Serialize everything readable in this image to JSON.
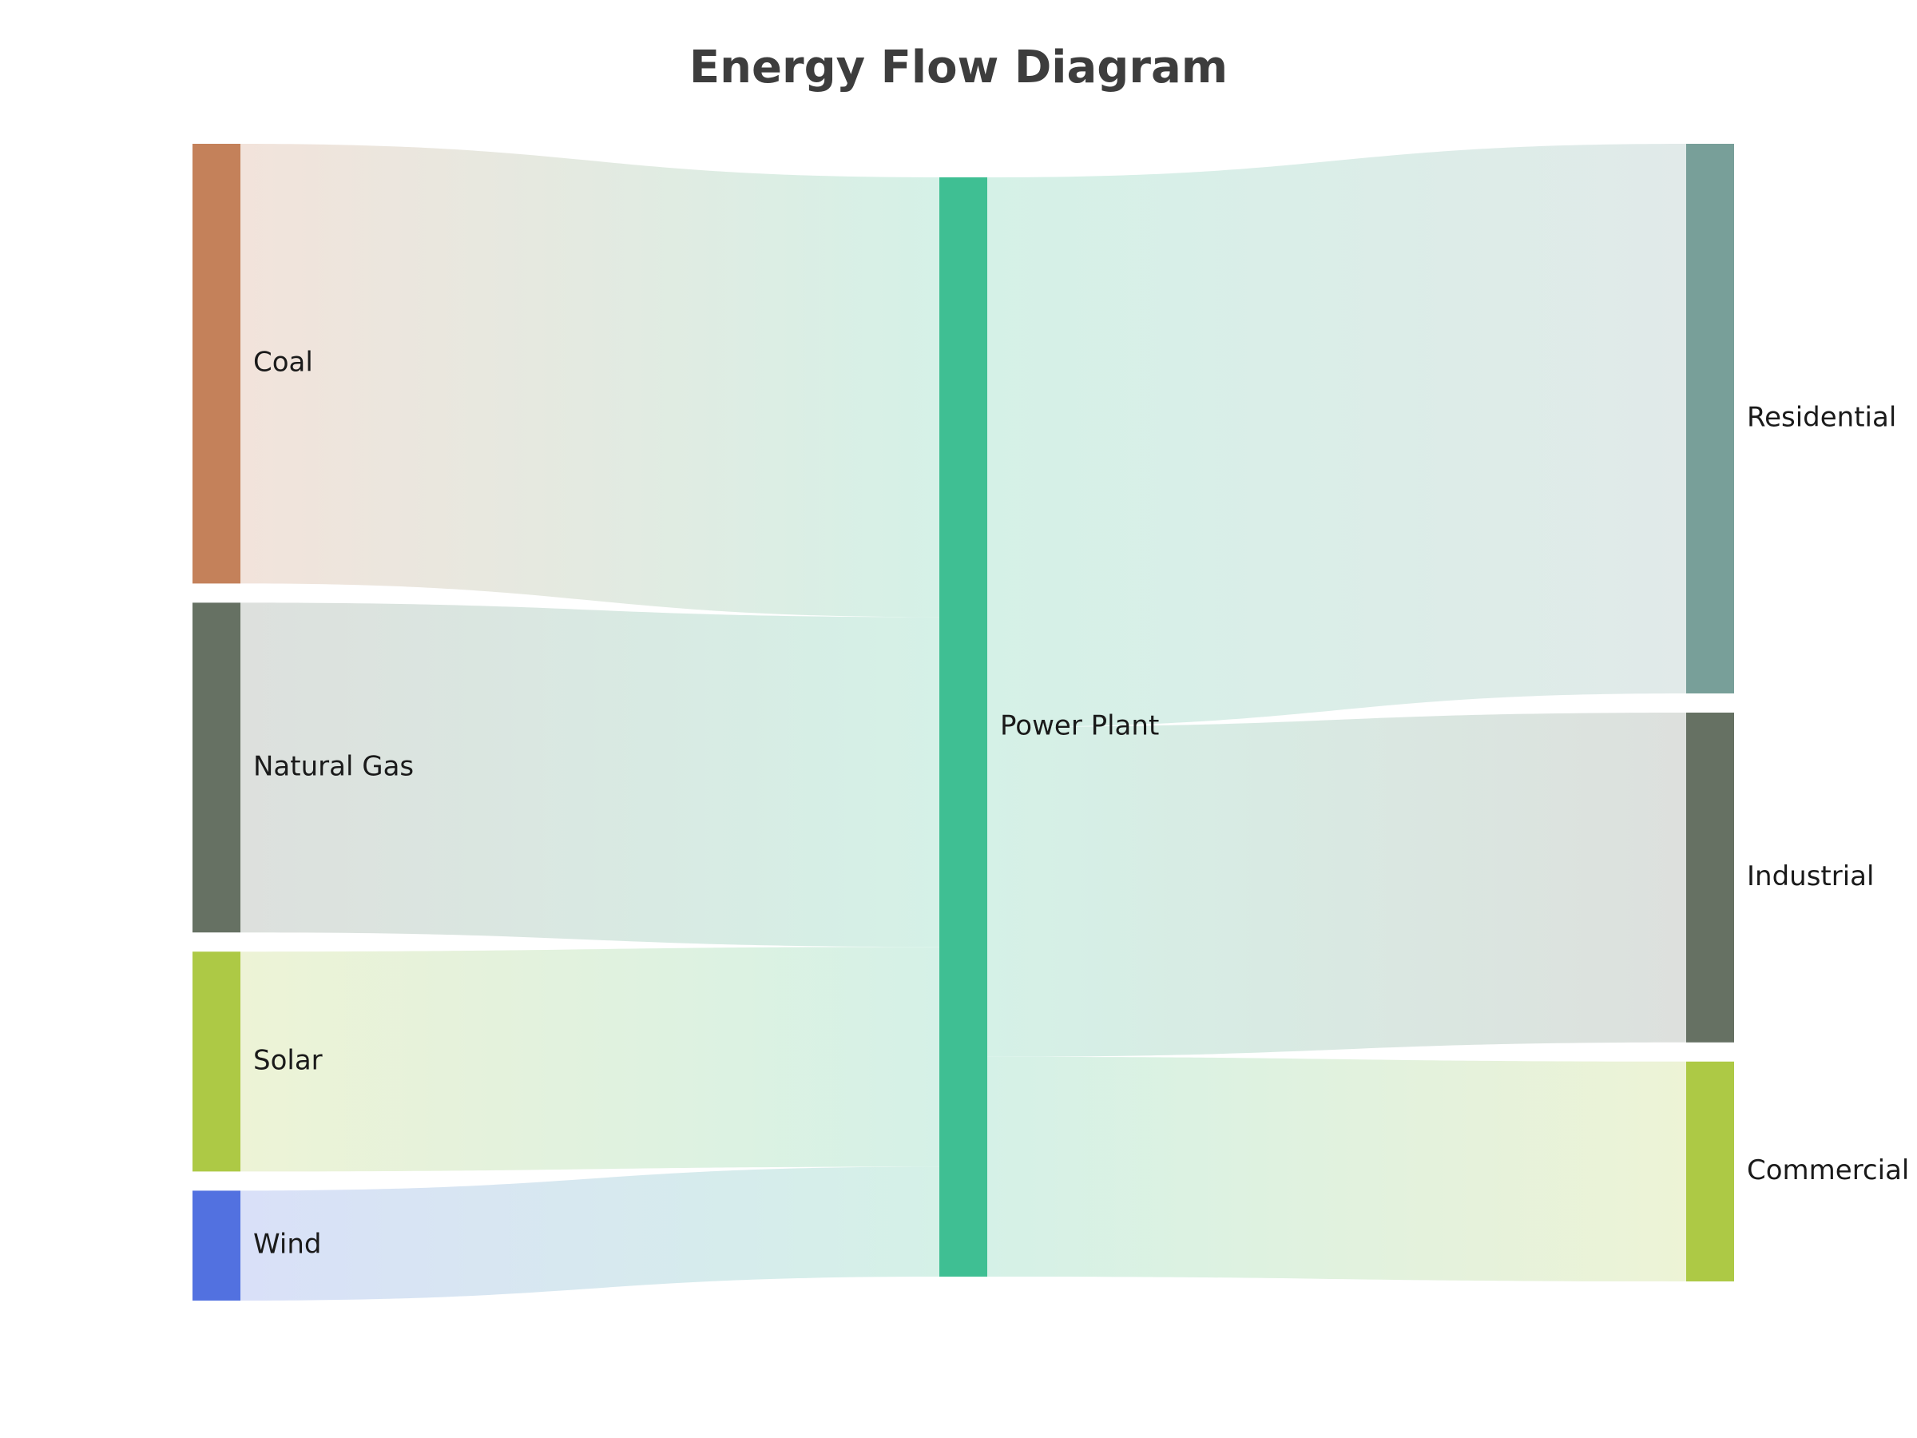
{
  "title": "Energy Flow Diagram",
  "chart_data": {
    "type": "sankey",
    "title": "Energy Flow Diagram",
    "nodes": [
      {
        "id": "coal",
        "label": "Coal",
        "color": "#c4815a",
        "column": 0
      },
      {
        "id": "natural_gas",
        "label": "Natural Gas",
        "color": "#667163",
        "column": 0
      },
      {
        "id": "solar",
        "label": "Solar",
        "color": "#adc945",
        "column": 0
      },
      {
        "id": "wind",
        "label": "Wind",
        "color": "#5271e0",
        "column": 0
      },
      {
        "id": "power_plant",
        "label": "Power Plant",
        "color": "#3fbf93",
        "column": 1
      },
      {
        "id": "residential",
        "label": "Residential",
        "color": "#789f99",
        "column": 2
      },
      {
        "id": "industrial",
        "label": "Industrial",
        "color": "#667163",
        "column": 2
      },
      {
        "id": "commercial",
        "label": "Commercial",
        "color": "#adc945",
        "column": 2
      }
    ],
    "links": [
      {
        "source": "coal",
        "target": "power_plant",
        "value": 40
      },
      {
        "source": "natural_gas",
        "target": "power_plant",
        "value": 30
      },
      {
        "source": "solar",
        "target": "power_plant",
        "value": 20
      },
      {
        "source": "wind",
        "target": "power_plant",
        "value": 10
      },
      {
        "source": "power_plant",
        "target": "residential",
        "value": 50
      },
      {
        "source": "power_plant",
        "target": "industrial",
        "value": 30
      },
      {
        "source": "power_plant",
        "target": "commercial",
        "value": 20
      }
    ]
  }
}
